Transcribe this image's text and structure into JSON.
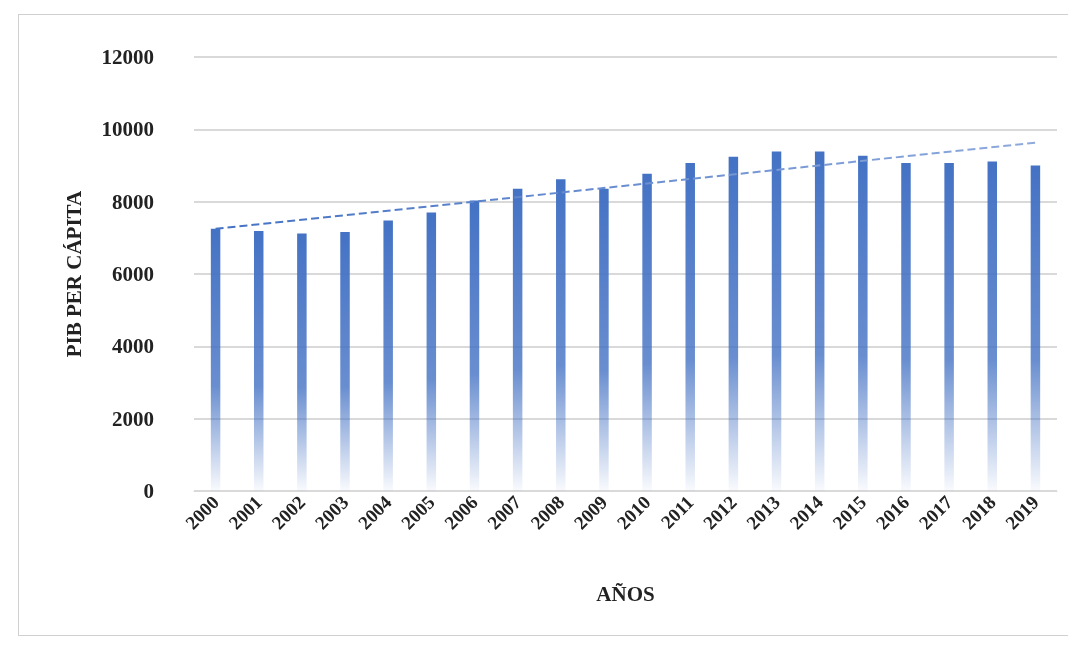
{
  "chart_data": {
    "type": "bar",
    "xlabel": "AÑOS",
    "ylabel": "PIB PER CÁPITA",
    "categories": [
      "2000",
      "2001",
      "2002",
      "2003",
      "2004",
      "2005",
      "2006",
      "2007",
      "2008",
      "2009",
      "2010",
      "2011",
      "2012",
      "2013",
      "2014",
      "2015",
      "2016",
      "2017",
      "2018",
      "2019"
    ],
    "series": [
      {
        "color": "#4472c4",
        "values": [
          7250,
          7190,
          7120,
          7160,
          7480,
          7700,
          8030,
          8360,
          8620,
          8360,
          8770,
          9070,
          9240,
          9390,
          9390,
          9270,
          9070,
          9070,
          9110,
          9000
        ]
      },
      {
        "type": "line",
        "color": "#8faadc",
        "line_style": "dashed",
        "marker": "none",
        "values": [
          7250,
          null,
          null,
          null,
          null,
          null,
          null,
          null,
          null,
          null,
          null,
          null,
          null,
          null,
          null,
          null,
          null,
          null,
          null,
          9630
        ]
      }
    ],
    "ylim": [
      0,
      12000
    ],
    "yticks": [
      0,
      2000,
      4000,
      6000,
      8000,
      10000,
      12000
    ],
    "grid": "y"
  }
}
